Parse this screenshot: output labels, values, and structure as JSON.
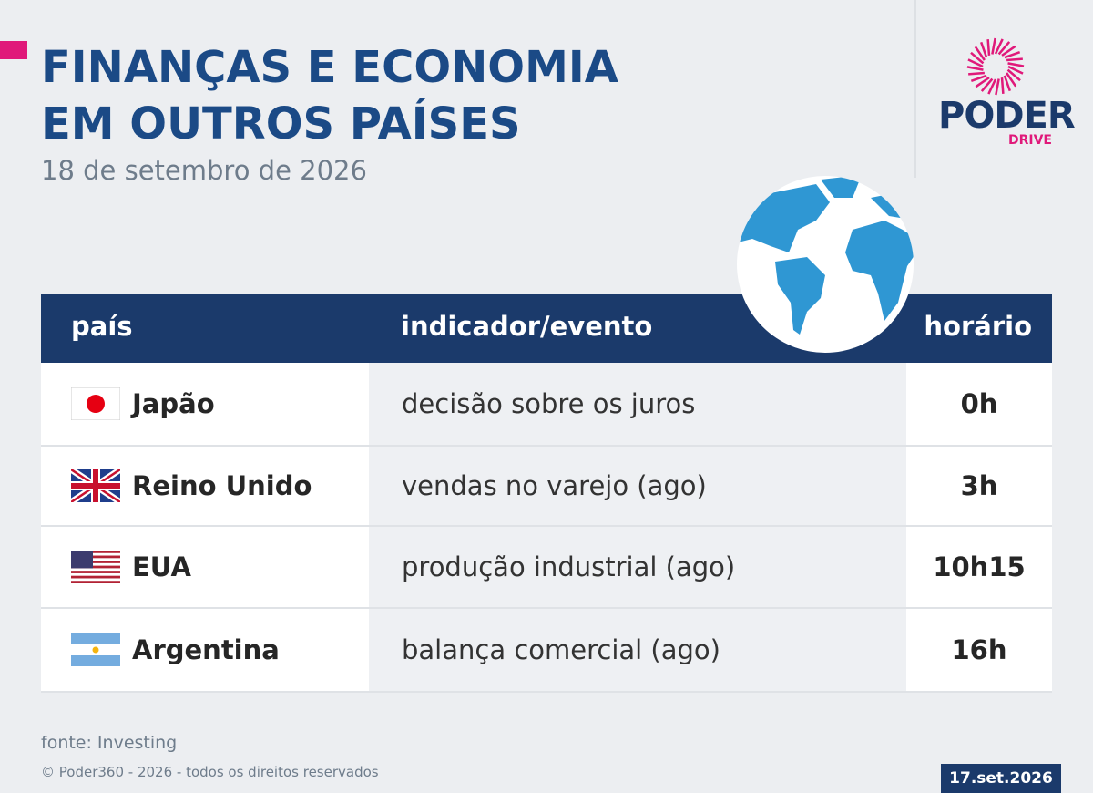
{
  "header": {
    "title_lines": [
      "FINANÇAS E ECONOMIA",
      "EM OUTROS PAÍSES"
    ],
    "date": "18 de setembro de 2026"
  },
  "logo": {
    "name": "PODER",
    "sub": "DRIVE"
  },
  "table": {
    "columns": [
      "país",
      "indicador/evento",
      "horário"
    ],
    "rows": [
      [
        "Japão",
        "decisão sobre os juros",
        "0h"
      ],
      [
        "Reino Unido",
        "vendas no varejo (ago)",
        "3h"
      ],
      [
        "EUA",
        "produção industrial (ago)",
        "10h15"
      ],
      [
        "Argentina",
        "balança comercial (ago)",
        "16h"
      ]
    ]
  },
  "footer": {
    "source": "fonte: Investing",
    "copyright": "© Poder360 - 2026 - todos os direitos reservados",
    "stamp": "17.set.2026"
  }
}
